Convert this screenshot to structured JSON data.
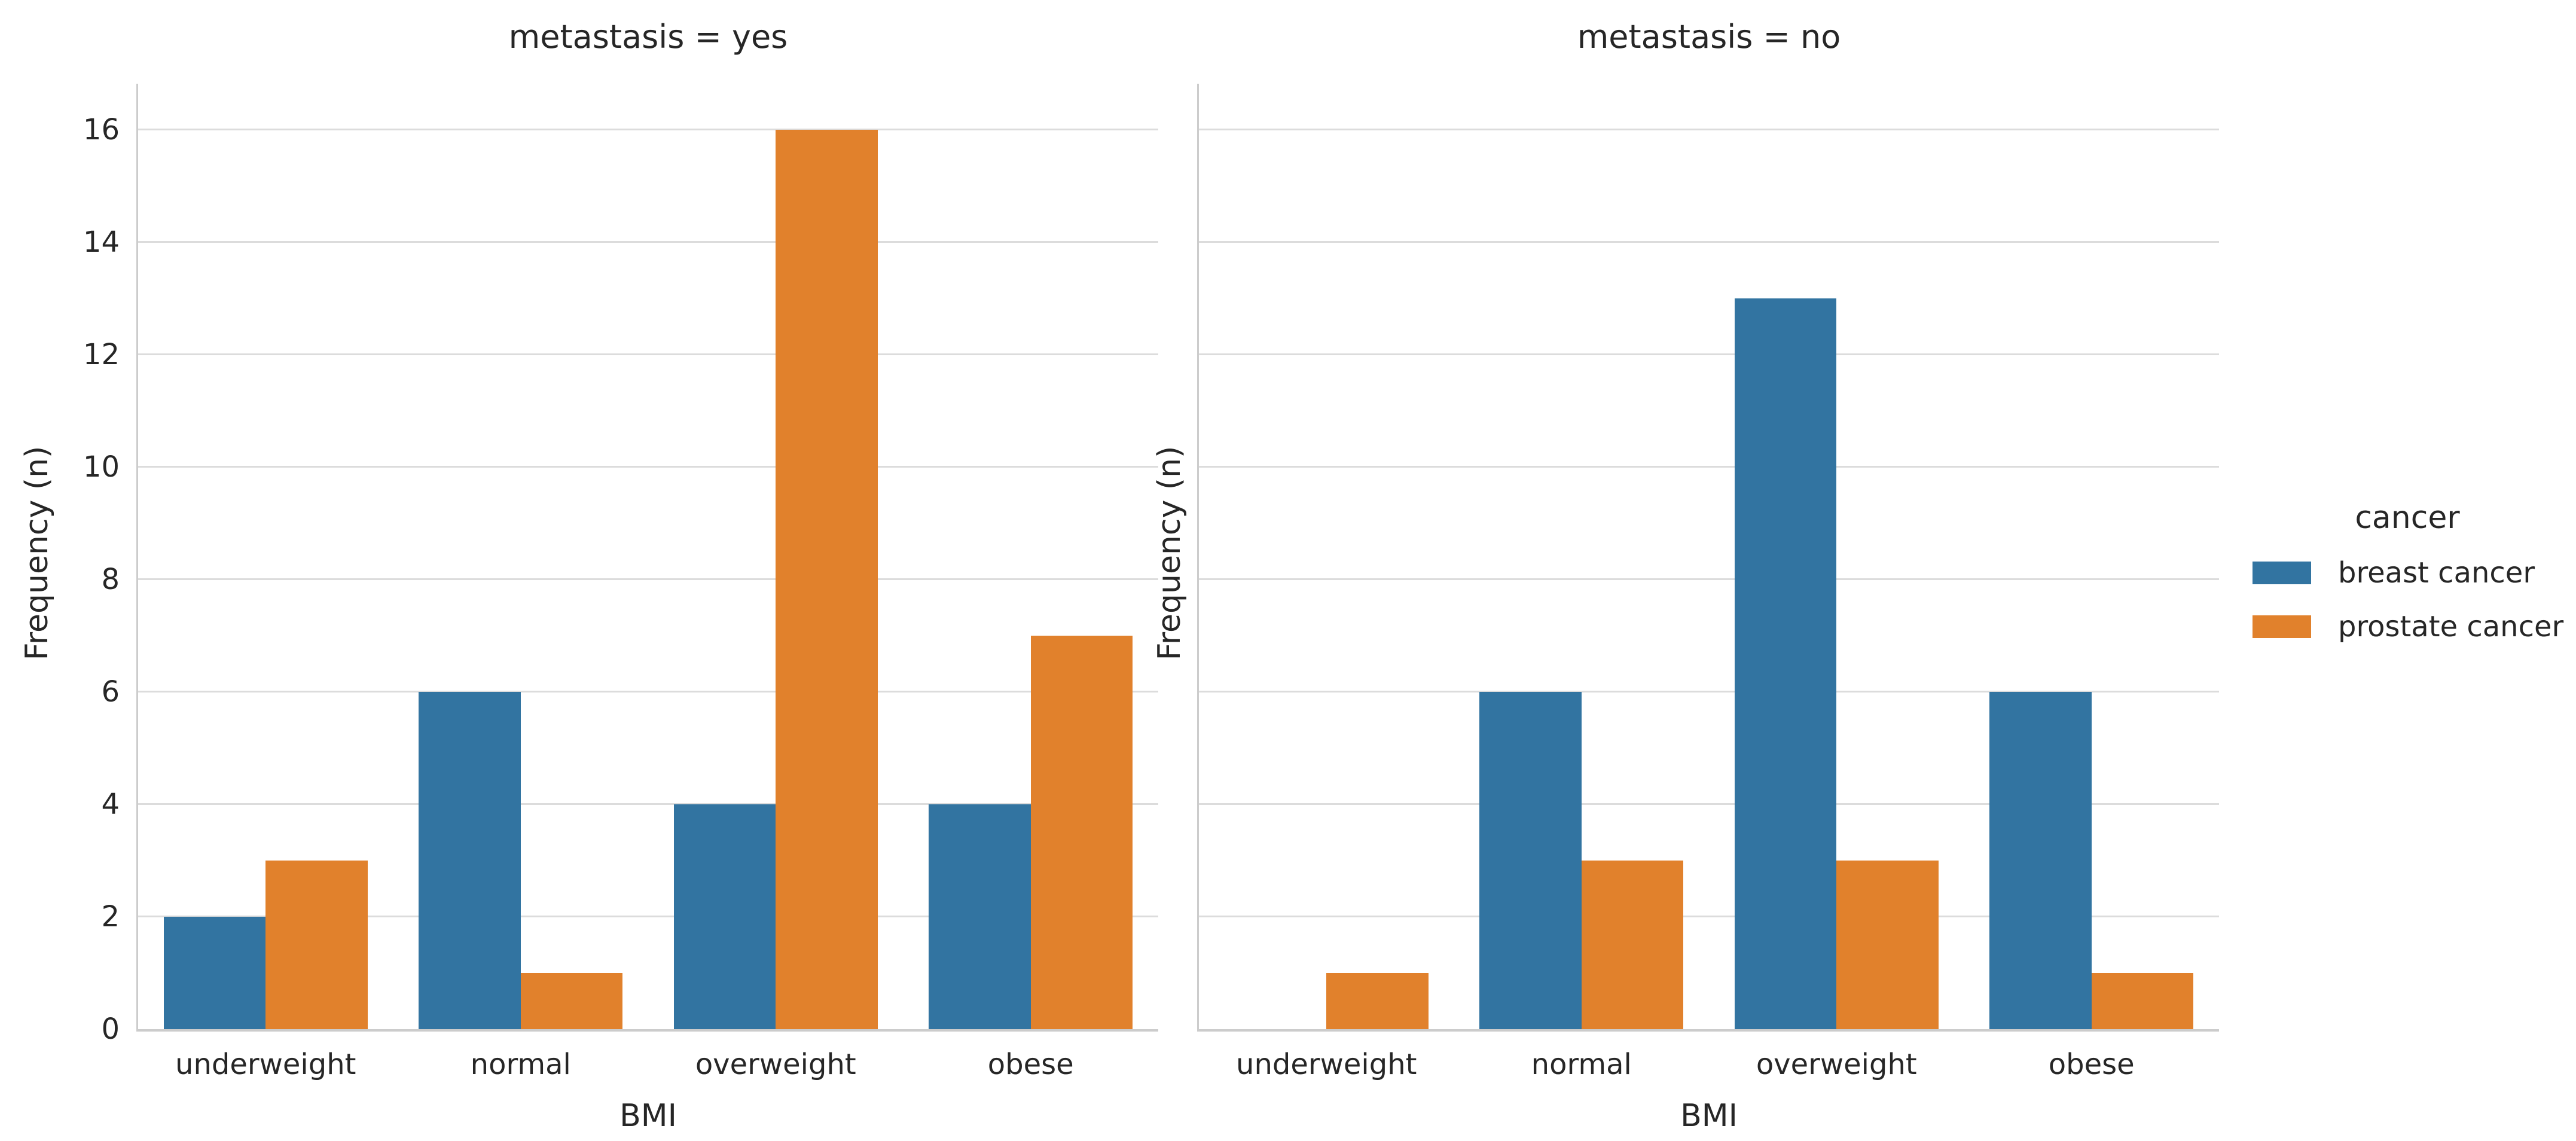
{
  "chart_data": {
    "type": "bar",
    "categories": [
      "underweight",
      "normal",
      "overweight",
      "obese"
    ],
    "panels": [
      {
        "title": "metastasis = yes",
        "series": [
          {
            "name": "breast cancer",
            "values": [
              2,
              6,
              4,
              4
            ]
          },
          {
            "name": "prostate cancer",
            "values": [
              3,
              1,
              16,
              7
            ]
          }
        ]
      },
      {
        "title": "metastasis = no",
        "series": [
          {
            "name": "breast cancer",
            "values": [
              0,
              6,
              13,
              6
            ]
          },
          {
            "name": "prostate cancer",
            "values": [
              1,
              3,
              3,
              1
            ]
          }
        ]
      }
    ],
    "xlabel": "BMI",
    "ylabel": "Frequency (n)",
    "yticks": [
      0,
      2,
      4,
      6,
      8,
      10,
      12,
      14,
      16
    ],
    "ylim": [
      0,
      16.8
    ],
    "grid": true,
    "legend": {
      "title": "cancer",
      "position": "right-center",
      "entries": [
        {
          "label": "breast cancer",
          "color": "#3274a1"
        },
        {
          "label": "prostate cancer",
          "color": "#e1812c"
        }
      ]
    },
    "style": {
      "grid_color": "#dcdcdc",
      "spine_color": "#cccccc",
      "text_color": "#262626",
      "background": "#ffffff"
    }
  }
}
